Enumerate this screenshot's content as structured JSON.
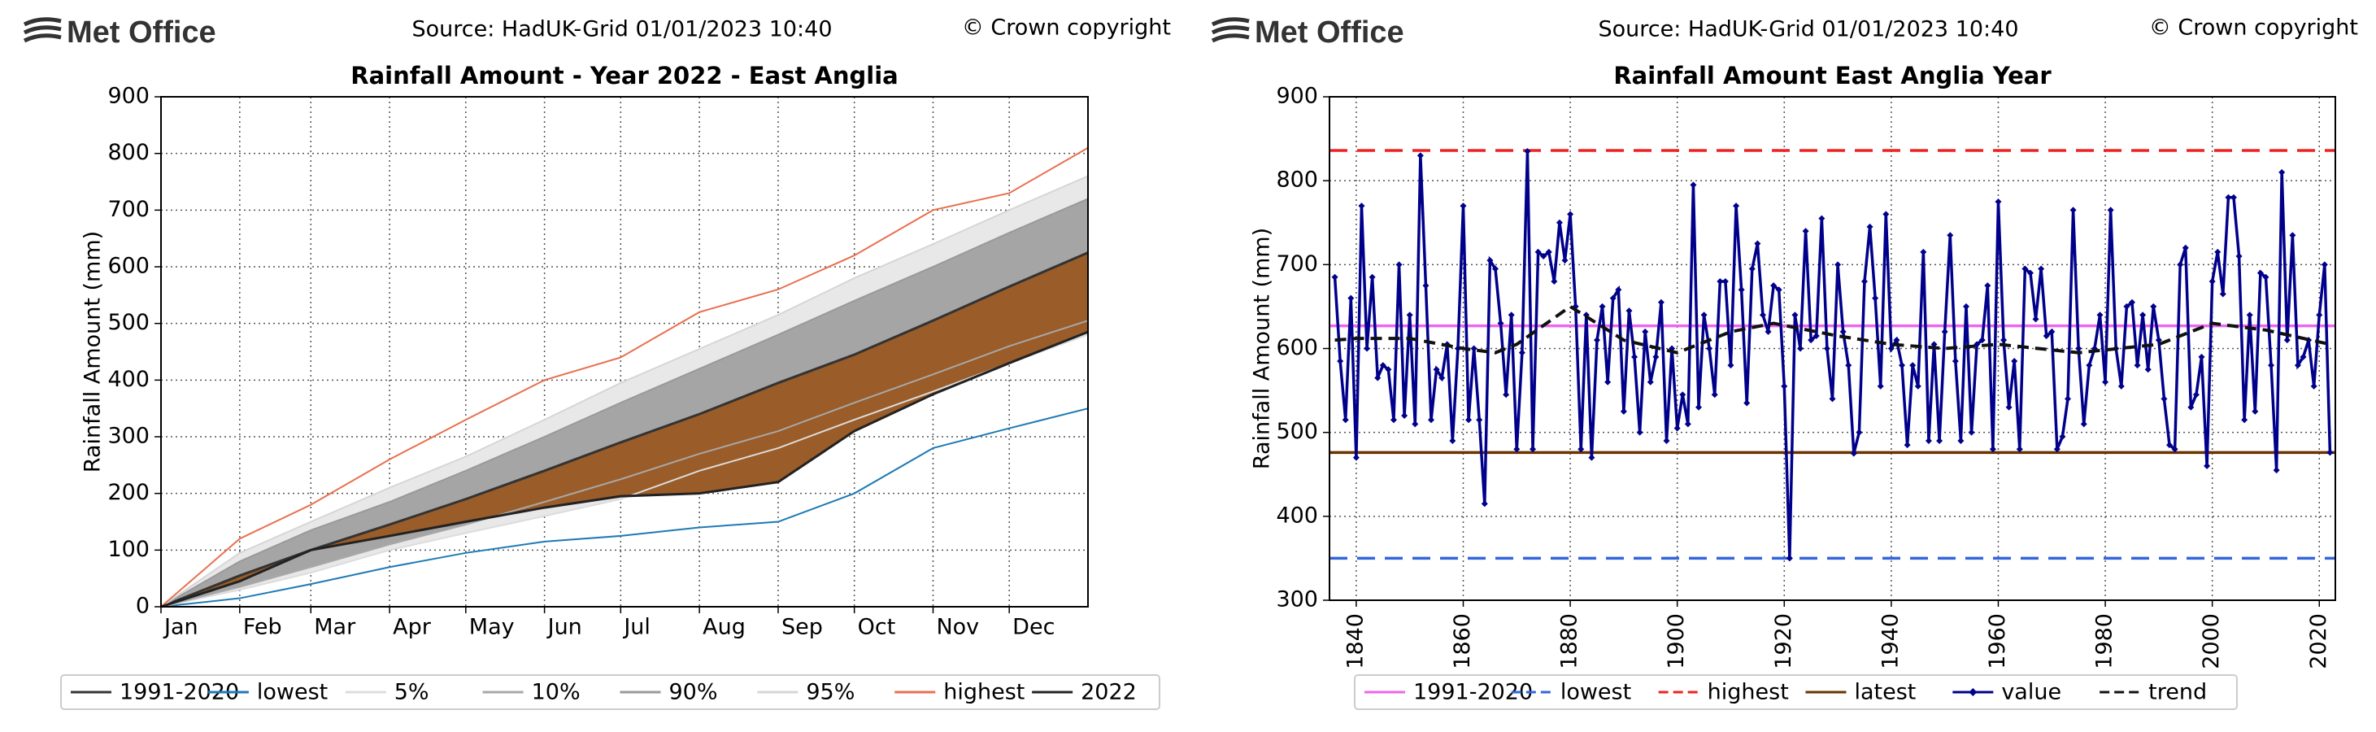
{
  "chart_data": [
    {
      "type": "fan",
      "brand": "Met Office",
      "source": "Source: HadUK-Grid 01/01/2023 10:40",
      "copyright": "© Crown copyright",
      "title": "Rainfall Amount - Year 2022 - East Anglia",
      "ylabel": "Rainfall Amount (mm)",
      "xlim": [
        0,
        365
      ],
      "ylim": [
        0,
        900
      ],
      "yticks": [
        0,
        100,
        200,
        300,
        400,
        500,
        600,
        700,
        800,
        900
      ],
      "xticks": [
        {
          "value": 0,
          "label": "Jan"
        },
        {
          "value": 31,
          "label": "Feb"
        },
        {
          "value": 59,
          "label": "Mar"
        },
        {
          "value": 90,
          "label": "Apr"
        },
        {
          "value": 120,
          "label": "May"
        },
        {
          "value": 151,
          "label": "Jun"
        },
        {
          "value": 181,
          "label": "Jul"
        },
        {
          "value": 212,
          "label": "Aug"
        },
        {
          "value": 243,
          "label": "Sep"
        },
        {
          "value": 273,
          "label": "Oct"
        },
        {
          "value": 304,
          "label": "Nov"
        },
        {
          "value": 334,
          "label": "Dec"
        }
      ],
      "grid": true,
      "x": [
        0,
        31,
        59,
        90,
        120,
        151,
        181,
        212,
        243,
        273,
        304,
        334,
        365
      ],
      "series": [
        {
          "name": "1991-2020",
          "color": "#333333",
          "values": [
            0,
            55,
            100,
            145,
            190,
            240,
            290,
            340,
            395,
            445,
            505,
            565,
            625
          ]
        },
        {
          "name": "lowest",
          "color": "#1f7ab5",
          "values": [
            0,
            15,
            40,
            70,
            95,
            115,
            125,
            140,
            150,
            200,
            280,
            315,
            350
          ]
        },
        {
          "name": "5%",
          "color": "#dcdcdc",
          "values": [
            0,
            30,
            60,
            100,
            130,
            160,
            190,
            240,
            280,
            330,
            380,
            430,
            480
          ]
        },
        {
          "name": "10%",
          "color": "#a8a8a8",
          "values": [
            0,
            35,
            70,
            110,
            145,
            185,
            225,
            270,
            310,
            360,
            410,
            460,
            505
          ]
        },
        {
          "name": "90%",
          "color": "#999999",
          "values": [
            0,
            80,
            135,
            185,
            240,
            300,
            360,
            420,
            480,
            540,
            600,
            660,
            720
          ]
        },
        {
          "name": "95%",
          "color": "#d6d6d6",
          "values": [
            0,
            95,
            150,
            210,
            265,
            330,
            395,
            455,
            515,
            580,
            640,
            700,
            760
          ]
        },
        {
          "name": "highest",
          "color": "#e8704f",
          "values": [
            0,
            120,
            180,
            260,
            330,
            400,
            440,
            520,
            560,
            620,
            700,
            730,
            810
          ]
        },
        {
          "name": "2022",
          "color": "#222222",
          "values": [
            0,
            45,
            100,
            125,
            150,
            175,
            195,
            200,
            220,
            310,
            375,
            430,
            485
          ]
        }
      ]
    },
    {
      "type": "line",
      "brand": "Met Office",
      "source": "Source: HadUK-Grid 01/01/2023 10:40",
      "copyright": "© Crown copyright",
      "title": "Rainfall Amount East Anglia Year",
      "ylabel": "Rainfall Amount (mm)",
      "xlim": [
        1835,
        2023
      ],
      "ylim": [
        300,
        900
      ],
      "yticks": [
        300,
        400,
        500,
        600,
        700,
        800,
        900
      ],
      "xticks": [
        1840,
        1860,
        1880,
        1900,
        1920,
        1940,
        1960,
        1980,
        2000,
        2020
      ],
      "grid": true,
      "reference_lines": [
        {
          "name": "1991-2020",
          "color": "#ee66ee",
          "value": 627,
          "dash": false
        },
        {
          "name": "lowest",
          "color": "#3366dd",
          "value": 350,
          "dash": true
        },
        {
          "name": "highest",
          "color": "#ee2222",
          "value": 836,
          "dash": true
        },
        {
          "name": "latest",
          "color": "#6b3300",
          "value": 476,
          "dash": false
        }
      ],
      "x": [
        1836,
        1837,
        1838,
        1839,
        1840,
        1841,
        1842,
        1843,
        1844,
        1845,
        1846,
        1847,
        1848,
        1849,
        1850,
        1851,
        1852,
        1853,
        1854,
        1855,
        1856,
        1857,
        1858,
        1859,
        1860,
        1861,
        1862,
        1863,
        1864,
        1865,
        1866,
        1867,
        1868,
        1869,
        1870,
        1871,
        1872,
        1873,
        1874,
        1875,
        1876,
        1877,
        1878,
        1879,
        1880,
        1881,
        1882,
        1883,
        1884,
        1885,
        1886,
        1887,
        1888,
        1889,
        1890,
        1891,
        1892,
        1893,
        1894,
        1895,
        1896,
        1897,
        1898,
        1899,
        1900,
        1901,
        1902,
        1903,
        1904,
        1905,
        1906,
        1907,
        1908,
        1909,
        1910,
        1911,
        1912,
        1913,
        1914,
        1915,
        1916,
        1917,
        1918,
        1919,
        1920,
        1921,
        1922,
        1923,
        1924,
        1925,
        1926,
        1927,
        1928,
        1929,
        1930,
        1931,
        1932,
        1933,
        1934,
        1935,
        1936,
        1937,
        1938,
        1939,
        1940,
        1941,
        1942,
        1943,
        1944,
        1945,
        1946,
        1947,
        1948,
        1949,
        1950,
        1951,
        1952,
        1953,
        1954,
        1955,
        1956,
        1957,
        1958,
        1959,
        1960,
        1961,
        1962,
        1963,
        1964,
        1965,
        1966,
        1967,
        1968,
        1969,
        1970,
        1971,
        1972,
        1973,
        1974,
        1975,
        1976,
        1977,
        1978,
        1979,
        1980,
        1981,
        1982,
        1983,
        1984,
        1985,
        1986,
        1987,
        1988,
        1989,
        1990,
        1991,
        1992,
        1993,
        1994,
        1995,
        1996,
        1997,
        1998,
        1999,
        2000,
        2001,
        2002,
        2003,
        2004,
        2005,
        2006,
        2007,
        2008,
        2009,
        2010,
        2011,
        2012,
        2013,
        2014,
        2015,
        2016,
        2017,
        2018,
        2019,
        2020,
        2021,
        2022
      ],
      "series": [
        {
          "name": "value",
          "color": "#00008b",
          "marker": true,
          "dash": false,
          "values": [
            685,
            585,
            515,
            660,
            470,
            770,
            600,
            685,
            565,
            580,
            575,
            515,
            700,
            520,
            640,
            510,
            830,
            675,
            515,
            575,
            565,
            605,
            490,
            600,
            770,
            515,
            600,
            515,
            415,
            705,
            695,
            630,
            545,
            640,
            480,
            595,
            835,
            480,
            715,
            710,
            715,
            680,
            750,
            705,
            760,
            650,
            480,
            640,
            470,
            610,
            650,
            560,
            660,
            670,
            525,
            645,
            590,
            500,
            620,
            560,
            590,
            655,
            490,
            600,
            505,
            545,
            510,
            795,
            530,
            640,
            600,
            545,
            680,
            680,
            580,
            770,
            670,
            535,
            695,
            725,
            640,
            620,
            675,
            670,
            555,
            350,
            640,
            600,
            740,
            610,
            615,
            755,
            600,
            540,
            700,
            620,
            580,
            475,
            500,
            680,
            745,
            660,
            555,
            760,
            600,
            610,
            580,
            485,
            580,
            555,
            715,
            490,
            605,
            490,
            620,
            735,
            585,
            490,
            650,
            500,
            605,
            610,
            675,
            480,
            775,
            610,
            530,
            585,
            480,
            695,
            690,
            635,
            695,
            615,
            620,
            480,
            495,
            540,
            765,
            600,
            510,
            580,
            600,
            640,
            560,
            765,
            600,
            555,
            650,
            655,
            580,
            640,
            575,
            650,
            610,
            540,
            485,
            480,
            700,
            720,
            530,
            545,
            590,
            460,
            680,
            715,
            665,
            780,
            780,
            710,
            515,
            640,
            525,
            690,
            685,
            580,
            455,
            810,
            610,
            735,
            580,
            590,
            610,
            555,
            640,
            700,
            476
          ]
        },
        {
          "name": "trend",
          "color": "#111111",
          "marker": false,
          "dash": true,
          "x": [
            1836,
            1840,
            1850,
            1860,
            1866,
            1870,
            1880,
            1890,
            1900,
            1910,
            1918,
            1930,
            1940,
            1950,
            1960,
            1975,
            1990,
            2000,
            2010,
            2022
          ],
          "values": [
            610,
            612,
            612,
            600,
            595,
            605,
            650,
            610,
            595,
            620,
            630,
            615,
            605,
            600,
            605,
            595,
            605,
            630,
            622,
            605
          ]
        }
      ]
    }
  ]
}
